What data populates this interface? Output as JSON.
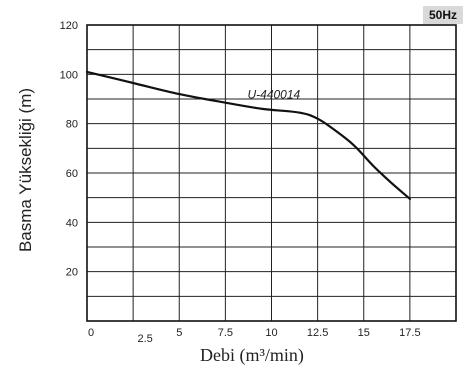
{
  "chart_data": {
    "type": "line",
    "title": "",
    "xlabel": "Debi (m³/min)",
    "ylabel": "Basma Yüksekliği (m)",
    "xlim": [
      0,
      20
    ],
    "ylim": [
      0,
      120
    ],
    "x_ticks": [
      {
        "value": 0,
        "label": "0"
      },
      {
        "value": 2.5,
        "label": "2.5"
      },
      {
        "value": 5,
        "label": "5"
      },
      {
        "value": 7.5,
        "label": "7.5"
      },
      {
        "value": 10,
        "label": "10"
      },
      {
        "value": 12.5,
        "label": "12.5"
      },
      {
        "value": 15,
        "label": "15"
      },
      {
        "value": 17.5,
        "label": "17.5"
      }
    ],
    "y_ticks": [
      {
        "value": 20,
        "label": "20"
      },
      {
        "value": 40,
        "label": "40"
      },
      {
        "value": 60,
        "label": "60"
      },
      {
        "value": 80,
        "label": "80"
      },
      {
        "value": 100,
        "label": "100"
      },
      {
        "value": 120,
        "label": "120"
      }
    ],
    "grid": true,
    "frequency_label": "50Hz",
    "series": [
      {
        "name": "U-440014",
        "color": "#111111",
        "x": [
          0,
          2.5,
          5,
          7.5,
          9.5,
          11.5,
          12.5,
          13.5,
          14.5,
          15.5,
          16.5,
          17.5
        ],
        "y": [
          101,
          96.5,
          92,
          88.5,
          86,
          84.5,
          82,
          77,
          71,
          63,
          56,
          49.5
        ]
      }
    ]
  }
}
